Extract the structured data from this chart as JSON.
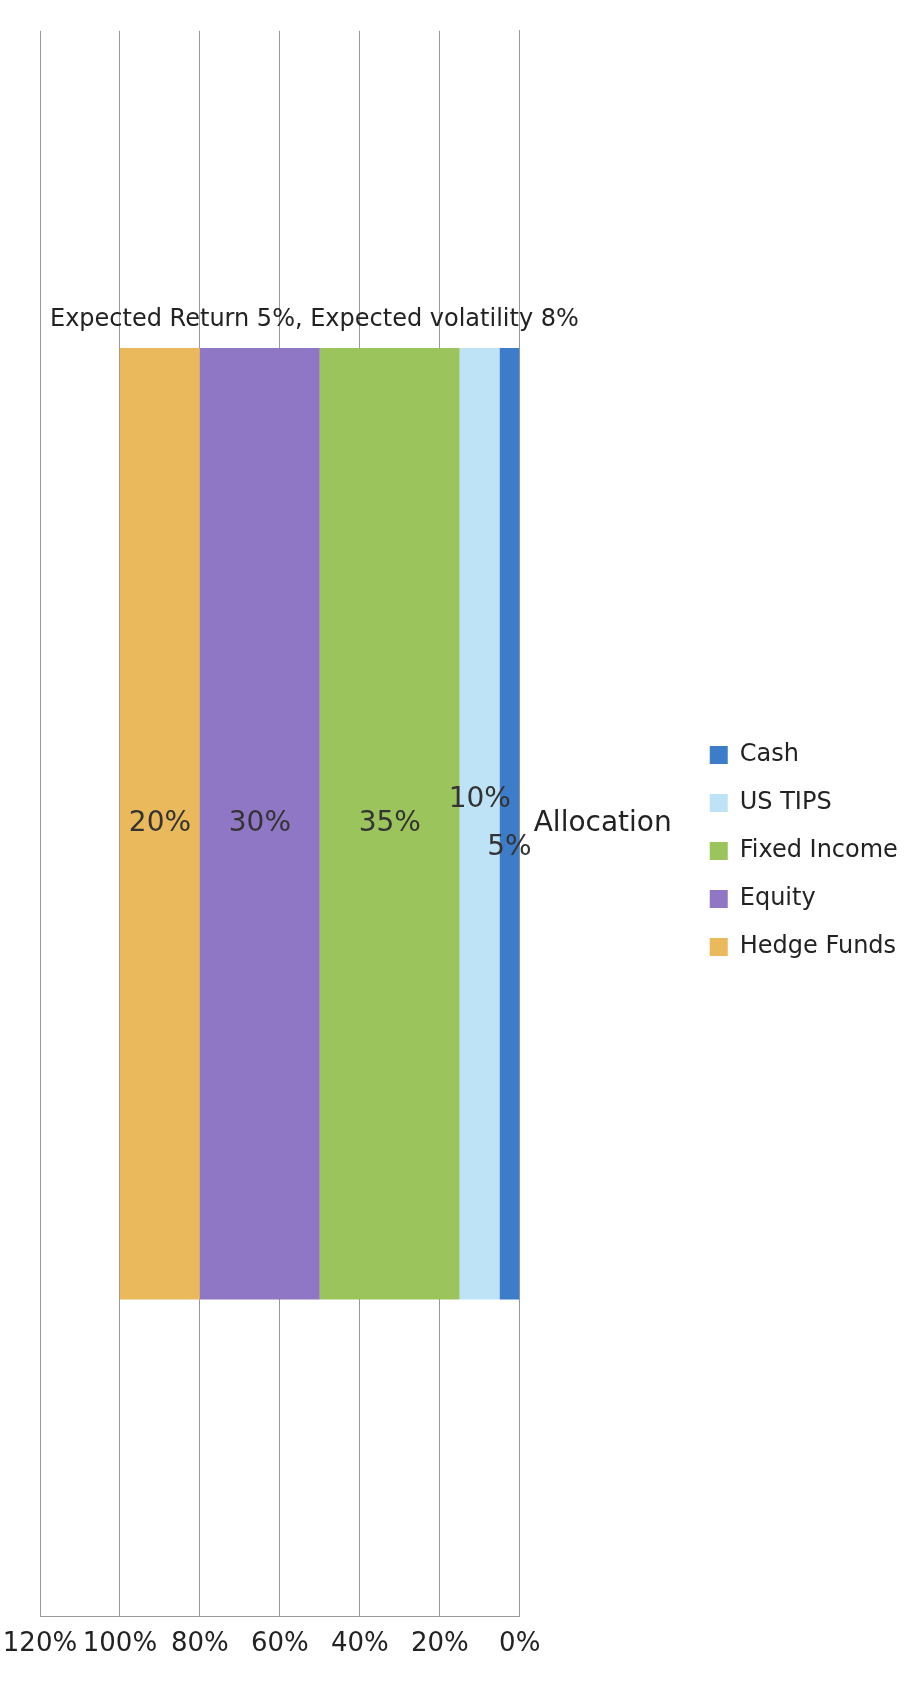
{
  "chart_data": {
    "type": "bar",
    "stacked": true,
    "orientation": "horizontal",
    "categories": [
      "Allocation"
    ],
    "series": [
      {
        "name": "Cash",
        "color": "#3d7cc9",
        "values": [
          5
        ],
        "value_labels": [
          "5%"
        ]
      },
      {
        "name": "US TIPS",
        "color": "#bfe3f6",
        "values": [
          10
        ],
        "value_labels": [
          "10%"
        ]
      },
      {
        "name": "Fixed Income",
        "color": "#9cc45c",
        "values": [
          35
        ],
        "value_labels": [
          "35%"
        ]
      },
      {
        "name": "Equity",
        "color": "#9077c6",
        "values": [
          30
        ],
        "value_labels": [
          "30%"
        ]
      },
      {
        "name": "Hedge Funds",
        "color": "#e9b95b",
        "values": [
          20
        ],
        "value_labels": [
          "20%"
        ]
      }
    ],
    "xlim": [
      120,
      0
    ],
    "xticks": [
      {
        "value": 0,
        "label": "0%"
      },
      {
        "value": 20,
        "label": "20%"
      },
      {
        "value": 40,
        "label": "40%"
      },
      {
        "value": 60,
        "label": "60%"
      },
      {
        "value": 80,
        "label": "80%"
      },
      {
        "value": 100,
        "label": "100%"
      },
      {
        "value": 120,
        "label": "120%"
      }
    ],
    "grid": "x",
    "legend": "right",
    "annotations": [
      "Expected Return 5%, Expected volatility 8%"
    ]
  }
}
